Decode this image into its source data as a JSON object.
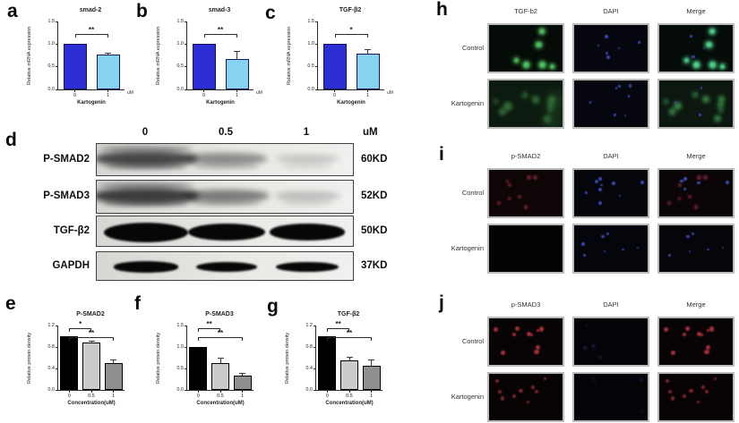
{
  "chart_data": [
    {
      "type": "bar",
      "panel_letter": "a",
      "title": "smad-2",
      "ylabel": "Relative mRNA expression",
      "xlabel": "Kartogenin",
      "unit": "uM",
      "categories": [
        "0",
        "1"
      ],
      "values": [
        1.0,
        0.77
      ],
      "errors": [
        0,
        0.04
      ],
      "bar_colors": [
        "#2e2ed6",
        "#85d3f0"
      ],
      "bar_border": "#15155a",
      "ylim": [
        0,
        1.5
      ],
      "yticks": [
        0,
        0.5,
        1.0,
        1.5
      ],
      "sig": [
        {
          "from": 0,
          "to": 1,
          "label": "**"
        }
      ]
    },
    {
      "type": "bar",
      "panel_letter": "b",
      "title": "smad-3",
      "ylabel": "Relative mRNA expression",
      "xlabel": "Kartogenin",
      "unit": "uM",
      "categories": [
        "0",
        "1"
      ],
      "values": [
        1.0,
        0.68
      ],
      "errors": [
        0,
        0.16
      ],
      "bar_colors": [
        "#2e2ed6",
        "#85d3f0"
      ],
      "bar_border": "#15155a",
      "ylim": [
        0,
        1.5
      ],
      "yticks": [
        0,
        0.5,
        1.0,
        1.5
      ],
      "sig": [
        {
          "from": 0,
          "to": 1,
          "label": "**"
        }
      ]
    },
    {
      "type": "bar",
      "panel_letter": "c",
      "title": "TGF-β2",
      "ylabel": "Relative mRNA expression",
      "xlabel": "Kartogenin",
      "unit": "uM",
      "categories": [
        "0",
        "1"
      ],
      "values": [
        1.0,
        0.78
      ],
      "errors": [
        0,
        0.11
      ],
      "bar_colors": [
        "#2e2ed6",
        "#85d3f0"
      ],
      "bar_border": "#15155a",
      "ylim": [
        0,
        1.5
      ],
      "yticks": [
        0,
        0.5,
        1.0,
        1.5
      ],
      "sig": [
        {
          "from": 0,
          "to": 1,
          "label": "*"
        }
      ]
    },
    {
      "type": "bar",
      "panel_letter": "e",
      "title": "P-SMAD2",
      "ylabel": "Relative protein density",
      "xlabel": "Concentration(uM)",
      "unit": "",
      "categories": [
        "0",
        "0.5",
        "1"
      ],
      "values": [
        1.0,
        0.88,
        0.5
      ],
      "errors": [
        0,
        0.04,
        0.07
      ],
      "bar_colors": [
        "#000000",
        "#cbcbcb",
        "#8f8f8f"
      ],
      "bar_border": "#000000",
      "ylim": [
        0,
        1.2
      ],
      "yticks": [
        0,
        0.4,
        0.8,
        1.2
      ],
      "sig": [
        {
          "from": 0,
          "to": 1,
          "label": "*"
        },
        {
          "from": 0,
          "to": 2,
          "label": "**"
        }
      ]
    },
    {
      "type": "bar",
      "panel_letter": "f",
      "title": "P-SMAD3",
      "ylabel": "Relative protein density",
      "xlabel": "Concentration(uM)",
      "unit": "",
      "categories": [
        "0",
        "0.5",
        "1"
      ],
      "values": [
        1.0,
        0.63,
        0.33
      ],
      "errors": [
        0,
        0.13,
        0.06
      ],
      "bar_colors": [
        "#000000",
        "#cbcbcb",
        "#8f8f8f"
      ],
      "bar_border": "#000000",
      "ylim": [
        0,
        1.5
      ],
      "yticks": [
        0,
        0.5,
        1.0,
        1.5
      ],
      "sig": [
        {
          "from": 0,
          "to": 1,
          "label": "**"
        },
        {
          "from": 0,
          "to": 2,
          "label": "**"
        }
      ]
    },
    {
      "type": "bar",
      "panel_letter": "g",
      "title": "TGF-β2",
      "ylabel": "Relative protein density",
      "xlabel": "Concentration(uM)",
      "unit": "",
      "categories": [
        "0",
        "0.5",
        "1"
      ],
      "values": [
        1.0,
        0.55,
        0.45
      ],
      "errors": [
        0,
        0.06,
        0.12
      ],
      "bar_colors": [
        "#000000",
        "#cbcbcb",
        "#8f8f8f"
      ],
      "bar_border": "#000000",
      "ylim": [
        0,
        1.2
      ],
      "yticks": [
        0,
        0.4,
        0.8,
        1.2
      ],
      "sig": [
        {
          "from": 0,
          "to": 1,
          "label": "**"
        },
        {
          "from": 0,
          "to": 2,
          "label": "**"
        }
      ]
    }
  ],
  "blot": {
    "letter": "d",
    "lanes": [
      "0",
      "0.5",
      "1"
    ],
    "unit": "uM",
    "rows": [
      {
        "protein": "P-SMAD2",
        "kd": "60KD",
        "style": "smear",
        "bands": [
          0.88,
          0.45,
          0.12
        ]
      },
      {
        "protein": "P-SMAD3",
        "kd": "52KD",
        "style": "smear",
        "bands": [
          0.95,
          0.55,
          0.16
        ]
      },
      {
        "protein": "TGF-β2",
        "kd": "50KD",
        "style": "solid",
        "band_scale": [
          1,
          1
        ],
        "bands": [
          1.0,
          0.8,
          0.7
        ]
      },
      {
        "protein": "GAPDH",
        "kd": "37KD",
        "style": "solid",
        "band_scale": [
          0.82,
          0.6
        ],
        "bands": [
          0.85,
          0.7,
          0.78
        ]
      }
    ]
  },
  "fluor_panels": [
    {
      "letter": "h",
      "columns": [
        "TGF-b2",
        "DAPI",
        "Merge"
      ],
      "rows": [
        "Control",
        "Kartogenin"
      ],
      "cells": [
        [
          {
            "bg": "#050b06",
            "layers": [
              {
                "color": "#4fbf5f",
                "count": 6,
                "rmin": 2,
                "rmax": 3.5,
                "blur": 1,
                "glow": true,
                "seed": 11
              }
            ]
          },
          {
            "bg": "#06060f",
            "layers": [
              {
                "color": "#3a49b0",
                "count": 6,
                "rmin": 1,
                "rmax": 2,
                "blur": 0.5,
                "seed": 12
              }
            ]
          },
          {
            "bg": "#050b09",
            "layers": [
              {
                "color": "#4fcf87",
                "count": 6,
                "rmin": 2,
                "rmax": 3.5,
                "blur": 1,
                "glow": true,
                "seed": 11
              },
              {
                "color": "#3a49b0",
                "count": 3,
                "rmin": 1,
                "rmax": 1.6,
                "blur": 0.5,
                "seed": 12
              }
            ]
          }
        ],
        [
          {
            "bg": "#0d1a0f",
            "layers": [
              {
                "color": "#3f8f4a",
                "count": 9,
                "rmin": 2.5,
                "rmax": 5,
                "blur": 2.5,
                "opacity": 0.75,
                "seed": 14
              },
              {
                "color": "#2f6f3a",
                "count": 2,
                "rmin": 9,
                "rmax": 14,
                "blur": 6,
                "opacity": 0.35,
                "seed": 15
              }
            ]
          },
          {
            "bg": "#06060f",
            "layers": [
              {
                "color": "#3a49b0",
                "count": 7,
                "rmin": 1,
                "rmax": 2,
                "blur": 0.5,
                "seed": 16
              }
            ]
          },
          {
            "bg": "#0c180f",
            "layers": [
              {
                "color": "#44a455",
                "count": 9,
                "rmin": 2.5,
                "rmax": 4.5,
                "blur": 2,
                "opacity": 0.8,
                "seed": 14
              },
              {
                "color": "#3a49b0",
                "count": 3,
                "rmin": 1,
                "rmax": 1.6,
                "blur": 0.5,
                "seed": 16
              }
            ]
          }
        ]
      ]
    },
    {
      "letter": "i",
      "columns": [
        "p-SMAD2",
        "DAPI",
        "Merge"
      ],
      "rows": [
        "Control",
        "Kartogenin"
      ],
      "cells": [
        [
          {
            "bg": "#0d0506",
            "layers": [
              {
                "color": "#8a2b36",
                "count": 8,
                "rmin": 1.5,
                "rmax": 2.5,
                "blur": 1,
                "opacity": 0.8,
                "seed": 21
              }
            ]
          },
          {
            "bg": "#05050c",
            "layers": [
              {
                "color": "#3a49b0",
                "count": 9,
                "rmin": 1.2,
                "rmax": 2.2,
                "blur": 0.6,
                "seed": 22
              }
            ]
          },
          {
            "bg": "#0b0508",
            "layers": [
              {
                "color": "#8a2b36",
                "count": 7,
                "rmin": 1.5,
                "rmax": 2.5,
                "blur": 1,
                "opacity": 0.8,
                "seed": 21
              },
              {
                "color": "#3a49b0",
                "count": 5,
                "rmin": 1.2,
                "rmax": 2,
                "blur": 0.6,
                "seed": 22
              }
            ]
          }
        ],
        [
          {
            "bg": "#040303",
            "layers": []
          },
          {
            "bg": "#05050c",
            "layers": [
              {
                "color": "#3a49b0",
                "count": 7,
                "rmin": 1.2,
                "rmax": 2.2,
                "blur": 0.6,
                "seed": 26
              }
            ]
          },
          {
            "bg": "#05050a",
            "layers": [
              {
                "color": "#3a49b0",
                "count": 6,
                "rmin": 1.2,
                "rmax": 2.2,
                "blur": 0.6,
                "seed": 26
              }
            ]
          }
        ]
      ]
    },
    {
      "letter": "j",
      "columns": [
        "p-SMAD3",
        "DAPI",
        "Merge"
      ],
      "rows": [
        "Control",
        "Kartogenin"
      ],
      "cells": [
        [
          {
            "bg": "#080304",
            "layers": [
              {
                "color": "#b23440",
                "count": 10,
                "rmin": 1.5,
                "rmax": 2.8,
                "blur": 0.8,
                "opacity": 0.9,
                "seed": 31
              }
            ]
          },
          {
            "bg": "#040408",
            "layers": [
              {
                "color": "#26306e",
                "count": 5,
                "rmin": 1.2,
                "rmax": 2,
                "blur": 1,
                "opacity": 0.6,
                "seed": 32
              }
            ]
          },
          {
            "bg": "#080305",
            "layers": [
              {
                "color": "#b23440",
                "count": 10,
                "rmin": 1.5,
                "rmax": 2.8,
                "blur": 0.8,
                "opacity": 0.9,
                "seed": 31
              }
            ]
          }
        ],
        [
          {
            "bg": "#070303",
            "layers": [
              {
                "color": "#9a2e38",
                "count": 9,
                "rmin": 1.3,
                "rmax": 2.4,
                "blur": 0.9,
                "opacity": 0.8,
                "seed": 34
              }
            ]
          },
          {
            "bg": "#040408",
            "layers": [
              {
                "color": "#26306e",
                "count": 4,
                "rmin": 1.2,
                "rmax": 2,
                "blur": 1,
                "opacity": 0.5,
                "seed": 36
              }
            ]
          },
          {
            "bg": "#070304",
            "layers": [
              {
                "color": "#9a2e38",
                "count": 9,
                "rmin": 1.3,
                "rmax": 2.4,
                "blur": 0.9,
                "opacity": 0.8,
                "seed": 34
              }
            ]
          }
        ]
      ]
    }
  ]
}
